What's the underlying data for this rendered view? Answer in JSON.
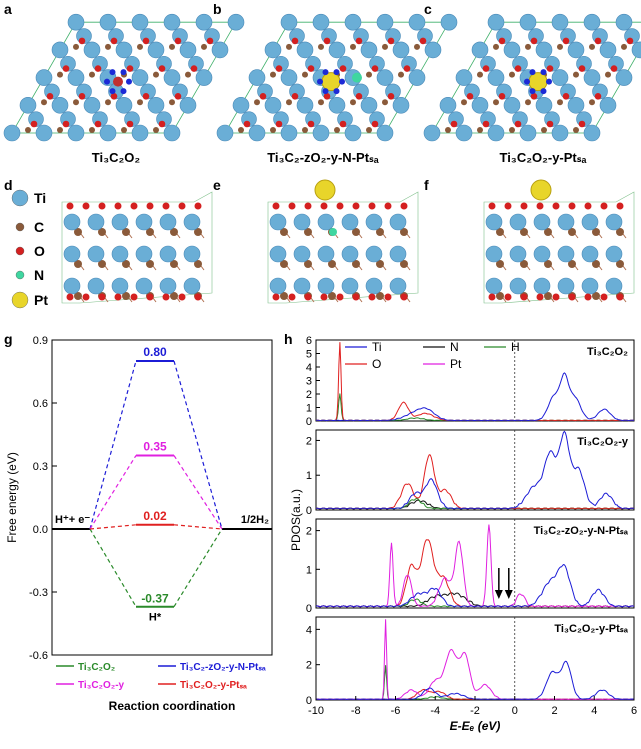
{
  "panel_labels": {
    "a": "a",
    "b": "b",
    "c": "c",
    "d": "d",
    "e": "e",
    "f": "f",
    "g": "g",
    "h": "h"
  },
  "top_captions": [
    "Ti₃C₂O₂",
    "Ti₃C₂-zO₂-y-N-Ptₛₐ",
    "Ti₃C₂O₂-y-Ptₛₐ"
  ],
  "atom_legend": [
    {
      "symbol": "Ti",
      "color": "#6aaed6"
    },
    {
      "symbol": "C",
      "color": "#8a5a3a"
    },
    {
      "symbol": "O",
      "color": "#d42020"
    },
    {
      "symbol": "N",
      "color": "#3fd6a0"
    },
    {
      "symbol": "Pt",
      "color": "#e8d52a"
    }
  ],
  "chart_data": [
    {
      "type": "line",
      "panel": "g",
      "ylabel": "Free energy (eV)",
      "xlabel": "Reaction coordination",
      "ylim": [
        -0.6,
        0.9
      ],
      "yticks": [
        "0.9",
        "0.6",
        "0.3",
        "0.0",
        "-0.3",
        "-0.6"
      ],
      "ytick_values": [
        0.9,
        0.6,
        0.3,
        0.0,
        -0.3,
        -0.6
      ],
      "state_labels": {
        "start": "H⁺+ e⁻",
        "end": "1/2H₂",
        "mid": "H*"
      },
      "series": [
        {
          "name": "Ti₃C₂O₂",
          "color": "#2a8a2a",
          "value": -0.37,
          "label": "-0.37"
        },
        {
          "name": "Ti₃C₂-zO₂-y-N-Ptₛₐ",
          "color": "#1c1cd6",
          "value": 0.8,
          "label": "0.80"
        },
        {
          "name": "Ti₃C₂O₂-y",
          "color": "#e020e0",
          "value": 0.35,
          "label": "0.35"
        },
        {
          "name": "Ti₃C₂O₂-y-Ptₛₐ",
          "color": "#e02020",
          "value": 0.02,
          "label": "0.02"
        }
      ]
    },
    {
      "type": "line",
      "panel": "h",
      "ylabel": "PDOS(a.u.)",
      "xlabel": "E-Eₑ (eV)",
      "xlim": [
        -10,
        6
      ],
      "xticks": [
        "-10",
        "-8",
        "-6",
        "-4",
        "-2",
        "0",
        "2",
        "4",
        "6"
      ],
      "xtick_values": [
        -10,
        -8,
        -6,
        -4,
        -2,
        0,
        2,
        4,
        6
      ],
      "legend": [
        {
          "name": "Ti",
          "color": "#1c1cd6"
        },
        {
          "name": "N",
          "color": "#111111"
        },
        {
          "name": "H",
          "color": "#2a8a2a"
        },
        {
          "name": "O",
          "color": "#e02020"
        },
        {
          "name": "Pt",
          "color": "#e020e0"
        }
      ],
      "subplots": [
        {
          "title": "Ti₃C₂O₂",
          "ylim": [
            0,
            6
          ],
          "yticks": [
            "0",
            "1",
            "2",
            "3",
            "4",
            "5",
            "6"
          ]
        },
        {
          "title": "Ti₃C₂O₂-y",
          "ylim": [
            0,
            2.3
          ],
          "yticks": [
            "0",
            "1",
            "2"
          ]
        },
        {
          "title": "Ti₃C₂-zO₂-y-N-Ptₛₐ",
          "ylim": [
            0,
            2.3
          ],
          "yticks": [
            "0",
            "1",
            "2"
          ]
        },
        {
          "title": "Ti₃C₂O₂-y-Ptₛₐ",
          "ylim": [
            0,
            4.7
          ],
          "yticks": [
            "0",
            "2",
            "4"
          ]
        }
      ]
    }
  ]
}
